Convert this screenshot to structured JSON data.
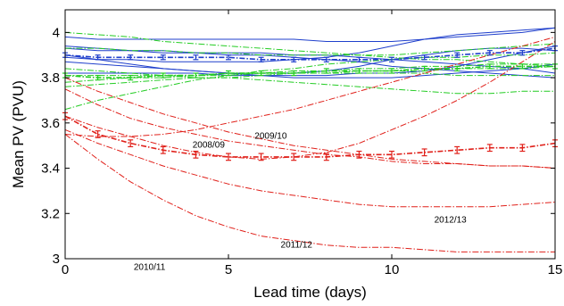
{
  "chart_data": {
    "type": "line",
    "title": "",
    "xlabel": "Lead time (days)",
    "ylabel": "Mean PV (PVU)",
    "xlim": [
      0,
      15
    ],
    "ylim": [
      3.0,
      4.1
    ],
    "xticks": [
      0,
      5,
      10,
      15
    ],
    "yticks": [
      3.0,
      3.2,
      3.4,
      3.6,
      3.8,
      4.0
    ],
    "xtick_labels": [
      "0",
      "5",
      "10",
      "15"
    ],
    "ytick_labels": [
      "3",
      "3.2",
      "3.4",
      "3.6",
      "3.8",
      "4"
    ],
    "grid": false,
    "legend": "none",
    "colors": {
      "blue": "#1f3fcc",
      "green": "#22cc22",
      "red": "#e0201a"
    },
    "x": [
      0,
      1,
      2,
      3,
      4,
      5,
      6,
      7,
      8,
      9,
      10,
      11,
      12,
      13,
      14,
      15
    ],
    "series": [
      {
        "group": "blue",
        "style": "solid",
        "values": [
          3.98,
          3.97,
          3.97,
          3.97,
          3.97,
          3.97,
          3.97,
          3.97,
          3.96,
          3.96,
          3.96,
          3.97,
          3.98,
          3.99,
          4.0,
          4.02
        ]
      },
      {
        "group": "blue",
        "style": "solid",
        "values": [
          3.93,
          3.92,
          3.92,
          3.91,
          3.91,
          3.9,
          3.9,
          3.89,
          3.88,
          3.87,
          3.85,
          3.84,
          3.83,
          3.82,
          3.81,
          3.8
        ]
      },
      {
        "group": "blue",
        "style": "solid",
        "values": [
          3.87,
          3.86,
          3.85,
          3.84,
          3.83,
          3.82,
          3.82,
          3.82,
          3.83,
          3.85,
          3.88,
          3.9,
          3.92,
          3.93,
          3.93,
          3.92
        ]
      },
      {
        "group": "blue",
        "style": "solid",
        "values": [
          3.9,
          3.88,
          3.86,
          3.84,
          3.83,
          3.82,
          3.81,
          3.81,
          3.81,
          3.82,
          3.82,
          3.83,
          3.85,
          3.88,
          3.91,
          3.94
        ]
      },
      {
        "group": "blue",
        "style": "solid",
        "values": [
          3.94,
          3.93,
          3.92,
          3.92,
          3.91,
          3.91,
          3.91,
          3.9,
          3.9,
          3.89,
          3.88,
          3.87,
          3.86,
          3.85,
          3.84,
          3.82
        ]
      },
      {
        "group": "blue",
        "style": "solid",
        "values": [
          3.89,
          3.88,
          3.88,
          3.87,
          3.87,
          3.87,
          3.87,
          3.88,
          3.89,
          3.91,
          3.94,
          3.97,
          3.99,
          4.0,
          4.01,
          4.02
        ]
      },
      {
        "group": "blue",
        "style": "solid",
        "values": [
          3.82,
          3.82,
          3.82,
          3.82,
          3.82,
          3.81,
          3.81,
          3.8,
          3.8,
          3.8,
          3.8,
          3.81,
          3.82,
          3.83,
          3.84,
          3.86
        ]
      },
      {
        "group": "green",
        "style": "dashdot",
        "values": [
          4.0,
          3.99,
          3.98,
          3.96,
          3.95,
          3.94,
          3.93,
          3.92,
          3.91,
          3.9,
          3.89,
          3.88,
          3.88,
          3.87,
          3.86,
          3.85
        ]
      },
      {
        "group": "green",
        "style": "dashdot",
        "values": [
          3.93,
          3.93,
          3.92,
          3.92,
          3.91,
          3.91,
          3.9,
          3.9,
          3.9,
          3.9,
          3.9,
          3.91,
          3.92,
          3.93,
          3.94,
          3.95
        ]
      },
      {
        "group": "green",
        "style": "dashdot",
        "values": [
          3.66,
          3.7,
          3.73,
          3.76,
          3.79,
          3.81,
          3.83,
          3.84,
          3.86,
          3.87,
          3.88,
          3.89,
          3.89,
          3.9,
          3.9,
          3.91
        ]
      },
      {
        "group": "green",
        "style": "dashdot",
        "values": [
          3.84,
          3.83,
          3.82,
          3.81,
          3.8,
          3.8,
          3.79,
          3.78,
          3.77,
          3.76,
          3.75,
          3.74,
          3.73,
          3.73,
          3.74,
          3.74
        ]
      },
      {
        "group": "green",
        "style": "dashdot",
        "values": [
          3.78,
          3.79,
          3.8,
          3.8,
          3.81,
          3.82,
          3.82,
          3.83,
          3.83,
          3.84,
          3.84,
          3.85,
          3.85,
          3.86,
          3.86,
          3.86
        ]
      },
      {
        "group": "green",
        "style": "dashdot",
        "values": [
          3.76,
          3.77,
          3.78,
          3.79,
          3.8,
          3.8,
          3.81,
          3.82,
          3.82,
          3.83,
          3.83,
          3.83,
          3.84,
          3.84,
          3.84,
          3.85
        ]
      },
      {
        "group": "green",
        "style": "dashdot",
        "values": [
          3.81,
          3.81,
          3.81,
          3.81,
          3.81,
          3.81,
          3.82,
          3.82,
          3.82,
          3.82,
          3.82,
          3.82,
          3.81,
          3.81,
          3.81,
          3.81
        ]
      },
      {
        "group": "red",
        "style": "dashdot",
        "label": "2008/09",
        "values": [
          3.55,
          3.54,
          3.54,
          3.55,
          3.57,
          3.6,
          3.63,
          3.66,
          3.7,
          3.74,
          3.78,
          3.82,
          3.86,
          3.9,
          3.94,
          3.98
        ]
      },
      {
        "group": "red",
        "style": "dashdot",
        "label": "2009/10",
        "values": [
          3.63,
          3.58,
          3.54,
          3.5,
          3.47,
          3.45,
          3.44,
          3.45,
          3.47,
          3.51,
          3.57,
          3.63,
          3.7,
          3.78,
          3.87,
          3.96
        ]
      },
      {
        "group": "red",
        "style": "dashdot",
        "label": "2010/11",
        "values": [
          3.55,
          3.44,
          3.34,
          3.26,
          3.19,
          3.14,
          3.1,
          3.08,
          3.06,
          3.05,
          3.05,
          3.04,
          3.03,
          3.03,
          3.03,
          3.03
        ]
      },
      {
        "group": "red",
        "style": "dashdot",
        "label": "2011/12",
        "values": [
          3.57,
          3.51,
          3.46,
          3.41,
          3.37,
          3.33,
          3.3,
          3.28,
          3.26,
          3.24,
          3.23,
          3.23,
          3.23,
          3.23,
          3.24,
          3.25
        ]
      },
      {
        "group": "red",
        "style": "dashdot",
        "label": "2012/13",
        "values": [
          3.75,
          3.68,
          3.62,
          3.58,
          3.55,
          3.52,
          3.5,
          3.48,
          3.46,
          3.45,
          3.43,
          3.42,
          3.42,
          3.41,
          3.41,
          3.4
        ]
      },
      {
        "group": "red",
        "style": "dashdot",
        "values": [
          3.8,
          3.74,
          3.69,
          3.64,
          3.6,
          3.56,
          3.53,
          3.5,
          3.48,
          3.46,
          3.44,
          3.43,
          3.42,
          3.41,
          3.41,
          3.4
        ]
      }
    ],
    "means": [
      {
        "group": "blue",
        "values": [
          3.9,
          3.89,
          3.89,
          3.89,
          3.89,
          3.89,
          3.88,
          3.88,
          3.88,
          3.88,
          3.88,
          3.89,
          3.9,
          3.91,
          3.91,
          3.93
        ],
        "err": 0.01
      },
      {
        "group": "green",
        "values": [
          3.81,
          3.8,
          3.8,
          3.81,
          3.81,
          3.82,
          3.82,
          3.82,
          3.83,
          3.83,
          3.83,
          3.84,
          3.84,
          3.85,
          3.85,
          3.85
        ],
        "err": 0.01
      },
      {
        "group": "red",
        "values": [
          3.63,
          3.55,
          3.51,
          3.48,
          3.46,
          3.45,
          3.45,
          3.45,
          3.45,
          3.46,
          3.46,
          3.47,
          3.48,
          3.49,
          3.49,
          3.51
        ],
        "err": 0.015
      }
    ],
    "annotations": [
      {
        "text": "2008/09",
        "x": 3.9,
        "y": 3.49
      },
      {
        "text": "2009/10",
        "x": 5.8,
        "y": 3.53
      },
      {
        "text": "2012/13",
        "x": 11.3,
        "y": 3.16
      },
      {
        "text": "2011/12",
        "x": 6.6,
        "y": 3.05
      },
      {
        "text": "2010/11",
        "x": 2.1,
        "y": 2.95
      }
    ]
  }
}
